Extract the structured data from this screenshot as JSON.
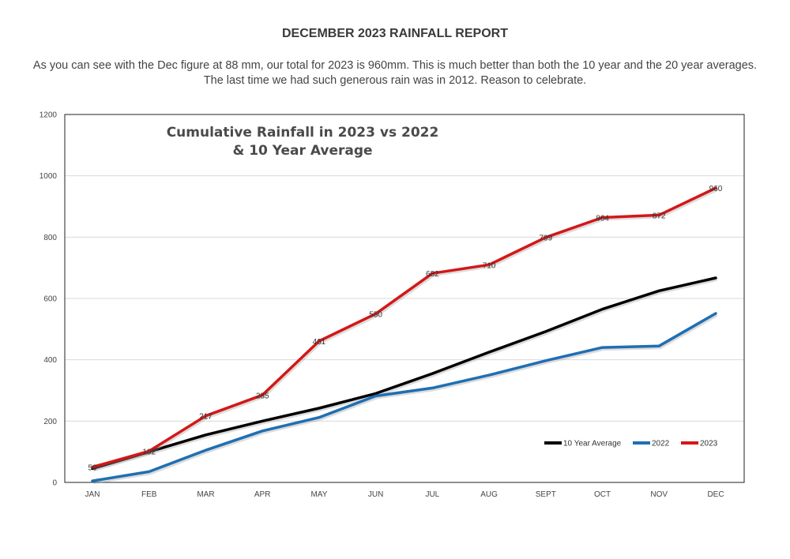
{
  "report": {
    "title": "DECEMBER 2023 RAINFALL REPORT",
    "line1": "As you can see with the Dec figure at 88 mm, our total for 2023 is 960mm. This is much better than both the 10 year  and the 20 year averages.",
    "line2": "The last time we had such generous rain was in 2012. Reason to celebrate."
  },
  "chart_data": {
    "type": "line",
    "title_line1": "Cumulative Rainfall in 2023 vs 2022",
    "title_line2": "& 10 Year Average",
    "categories": [
      "JAN",
      "FEB",
      "MAR",
      "APR",
      "MAY",
      "JUN",
      "JUL",
      "AUG",
      "SEPT",
      "OCT",
      "NOV",
      "DEC"
    ],
    "ylim": [
      0,
      1200
    ],
    "yticks": [
      0,
      200,
      400,
      600,
      800,
      1000,
      1200
    ],
    "grid": true,
    "legend_position": "bottom-right",
    "series": [
      {
        "name": "10  Year Average",
        "color": "#000000",
        "labeled": false,
        "values": [
          45,
          100,
          155,
          200,
          242,
          290,
          355,
          425,
          492,
          565,
          625,
          667
        ]
      },
      {
        "name": "2022",
        "color": "#1f6fb2",
        "labeled": false,
        "values": [
          5,
          35,
          105,
          168,
          212,
          282,
          308,
          350,
          397,
          440,
          445,
          551
        ]
      },
      {
        "name": "2023",
        "color": "#d41717",
        "labeled": true,
        "values": [
          50,
          102,
          217,
          285,
          461,
          550,
          682,
          710,
          799,
          864,
          872,
          960
        ]
      }
    ]
  }
}
